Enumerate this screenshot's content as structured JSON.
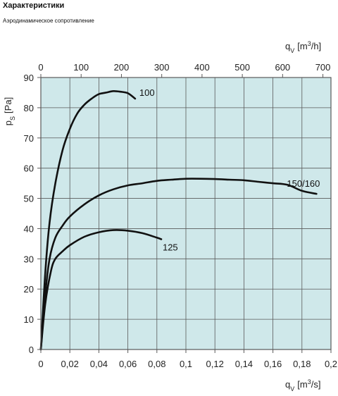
{
  "page": {
    "heading": "Характеристики",
    "subheading": "Аэродинамическое сопротивление"
  },
  "colors": {
    "plot_background": "#cfe8ea",
    "grid": "#5a5a5a",
    "curve": "#111111"
  },
  "chart_data": {
    "type": "line",
    "title": "Аэродинамическое сопротивление",
    "xlabel": "q",
    "xlabel_sub": "V",
    "xlabel_unit_prefix": "[m",
    "xlabel_unit_sup": "3",
    "xlabel_unit_suffix": "/s]",
    "x2label": "q",
    "x2label_sub": "V",
    "x2label_unit_prefix": "[m",
    "x2label_unit_sup": "3",
    "x2label_unit_suffix": "/h]",
    "ylabel": "p",
    "ylabel_sub": "S",
    "ylabel_unit": "[Pa]",
    "xlim": [
      0,
      0.2
    ],
    "ylim": [
      0,
      90
    ],
    "x2lim": [
      0,
      720
    ],
    "xticks": [
      0,
      0.02,
      0.04,
      0.06,
      0.08,
      0.1,
      0.12,
      0.14,
      0.16,
      0.18,
      0.2
    ],
    "xtick_labels": [
      "0",
      "0,02",
      "0,04",
      "0,06",
      "0,08",
      "0,1",
      "0,12",
      "0,14",
      "0,16",
      "0,18",
      "0,2"
    ],
    "x2ticks": [
      0,
      100,
      200,
      300,
      400,
      500,
      600,
      700
    ],
    "x2tick_labels": [
      "0",
      "100",
      "200",
      "300",
      "400",
      "500",
      "600",
      "700"
    ],
    "yticks": [
      0,
      10,
      20,
      30,
      40,
      50,
      60,
      70,
      80,
      90
    ],
    "ytick_labels": [
      "0",
      "10",
      "20",
      "30",
      "40",
      "50",
      "60",
      "70",
      "80",
      "90"
    ],
    "grid": true,
    "series": [
      {
        "name": "100",
        "x": [
          0,
          0.003,
          0.006,
          0.01,
          0.015,
          0.02,
          0.025,
          0.03,
          0.035,
          0.04,
          0.045,
          0.05,
          0.055,
          0.06,
          0.065
        ],
        "y": [
          0,
          25,
          42,
          55,
          66,
          73,
          78,
          81,
          83,
          84.5,
          85,
          85.5,
          85.3,
          84.8,
          83
        ]
      },
      {
        "name": "150/160",
        "x": [
          0,
          0.003,
          0.006,
          0.01,
          0.015,
          0.02,
          0.03,
          0.04,
          0.05,
          0.06,
          0.07,
          0.08,
          0.09,
          0.1,
          0.11,
          0.12,
          0.13,
          0.14,
          0.15,
          0.16,
          0.17,
          0.18,
          0.19
        ],
        "y": [
          0,
          18,
          30,
          37,
          41,
          44,
          48,
          51,
          53,
          54.3,
          55,
          55.8,
          56.2,
          56.5,
          56.5,
          56.4,
          56.2,
          56,
          55.5,
          55,
          54.5,
          52.5,
          51.5
        ]
      },
      {
        "name": "125",
        "x": [
          0,
          0.003,
          0.007,
          0.01,
          0.015,
          0.02,
          0.03,
          0.04,
          0.05,
          0.06,
          0.07,
          0.08,
          0.083
        ],
        "y": [
          0,
          15,
          26,
          30,
          32.5,
          34.5,
          37.3,
          38.8,
          39.5,
          39.3,
          38.5,
          37,
          36.5
        ]
      }
    ]
  }
}
